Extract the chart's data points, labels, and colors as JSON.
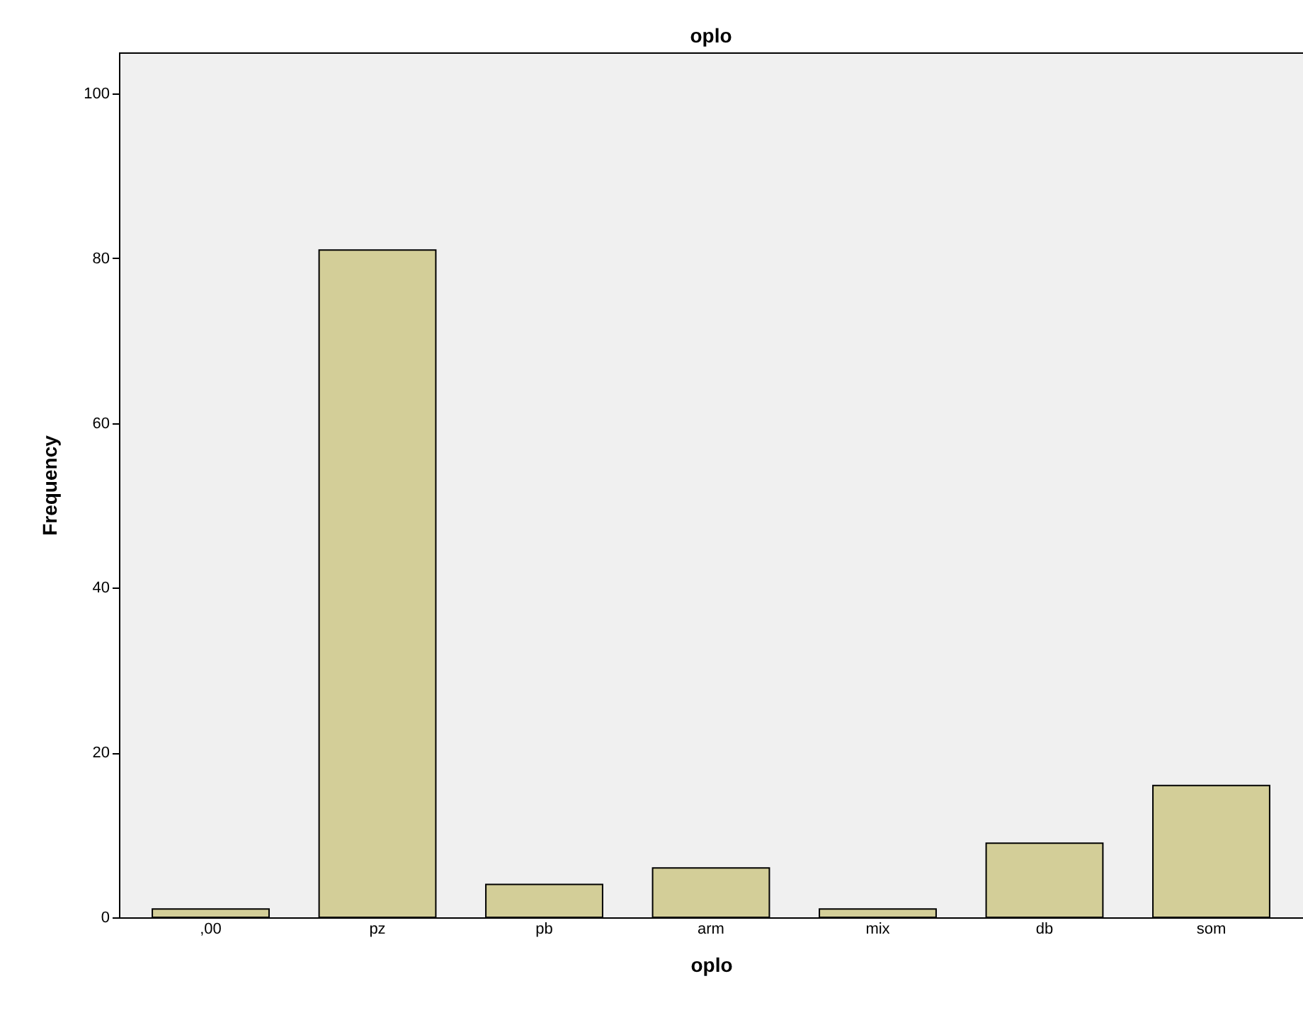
{
  "chart_data": {
    "type": "bar",
    "title": "oplo",
    "xlabel": "oplo",
    "ylabel": "Frequency",
    "categories": [
      ",00",
      "pz",
      "pb",
      "arm",
      "mix",
      "db",
      "som"
    ],
    "values": [
      1,
      81,
      4,
      6,
      1,
      9,
      16
    ],
    "color": "#d3ce98",
    "ylim": [
      0,
      105
    ],
    "yticks": [
      0,
      20,
      40,
      60,
      80,
      100
    ],
    "grid": false
  }
}
